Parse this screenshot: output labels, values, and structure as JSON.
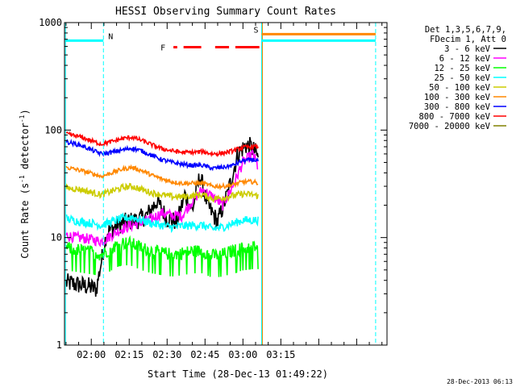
{
  "chart_data": {
    "type": "line",
    "title": "HESSI Observing Summary Count Rates",
    "xlabel": "Start Time (28-Dec-13 01:49:22)",
    "ylabel": "Count Rate (s-1 detector-1)",
    "ylabel_parts": {
      "main": "Count Rate (s",
      "exp1": "-1",
      "mid": " detector",
      "exp2": "-1",
      "close": ")"
    },
    "y_scale": "log",
    "ylim": [
      1,
      1000
    ],
    "y_ticks": [
      {
        "value": 1,
        "label": "1"
      },
      {
        "value": 10,
        "label": "10"
      },
      {
        "value": 100,
        "label": "100"
      },
      {
        "value": 1000,
        "label": "1000"
      }
    ],
    "xlim_minutes": [
      109.4,
      237.0
    ],
    "x_ticks": [
      {
        "minutes": 120,
        "label": "02:00"
      },
      {
        "minutes": 135,
        "label": "02:15"
      },
      {
        "minutes": 150,
        "label": "02:30"
      },
      {
        "minutes": 165,
        "label": "02:45"
      },
      {
        "minutes": 180,
        "label": "03:00"
      },
      {
        "minutes": 195,
        "label": "03:15"
      }
    ],
    "legend_header": [
      "Det 1,3,5,6,7,9,",
      "FDecim 1, Att 0"
    ],
    "legend_placement": "right",
    "grid": false,
    "series": [
      {
        "name": "3 - 6 keV",
        "color": "#000000",
        "x": [
          110,
          113,
          116,
          119,
          122,
          126,
          130,
          134,
          138,
          142,
          146,
          150,
          154,
          157,
          160,
          163,
          166,
          170,
          174,
          178,
          181,
          183,
          185,
          186
        ],
        "y": [
          3.8,
          3.7,
          3.6,
          3.5,
          3.3,
          11,
          13,
          14,
          14.5,
          16,
          22,
          15,
          14,
          25,
          18,
          38,
          20,
          14,
          26,
          60,
          72,
          70,
          62,
          55
        ]
      },
      {
        "name": "6 - 12 keV",
        "color": "#ff00ff",
        "x": [
          110,
          114,
          118,
          121,
          124,
          128,
          132,
          136,
          140,
          144,
          148,
          152,
          156,
          160,
          164,
          168,
          172,
          176,
          180,
          184,
          186
        ],
        "y": [
          10.5,
          10,
          9.8,
          9.5,
          9.2,
          10.5,
          12,
          13,
          14,
          15,
          17,
          16,
          16,
          22,
          28,
          24,
          20,
          30,
          50,
          60,
          45
        ]
      },
      {
        "name": "12 - 25 keV",
        "color": "#00ff00",
        "x": [
          110,
          116,
          121,
          124,
          128,
          132,
          136,
          140,
          144,
          148,
          152,
          156,
          160,
          164,
          168,
          172,
          176,
          180,
          184,
          186
        ],
        "y": [
          8,
          7.6,
          7.3,
          6.9,
          8,
          9,
          8.8,
          8,
          7.5,
          7.2,
          7,
          7.2,
          7.5,
          7.5,
          6.8,
          7,
          7.5,
          8,
          8.2,
          8.2
        ]
      },
      {
        "name": "25 - 50 keV",
        "color": "#00ffff",
        "x": [
          110,
          116,
          121,
          124,
          128,
          132,
          136,
          140,
          144,
          148,
          152,
          156,
          160,
          164,
          168,
          172,
          176,
          180,
          184,
          186
        ],
        "y": [
          15,
          14,
          13.5,
          13,
          14,
          15,
          15.5,
          14.5,
          13.5,
          13,
          12.5,
          12.8,
          13,
          13,
          12,
          12.5,
          13.5,
          14.5,
          14.5,
          14.5
        ]
      },
      {
        "name": "50 - 100 keV",
        "color": "#cccc00",
        "x": [
          110,
          116,
          121,
          124,
          128,
          132,
          136,
          140,
          144,
          148,
          152,
          156,
          160,
          164,
          168,
          172,
          176,
          180,
          184,
          186
        ],
        "y": [
          29,
          28,
          26,
          25,
          27,
          29,
          30,
          28,
          26,
          25,
          24,
          24,
          24.5,
          25,
          23,
          23.5,
          24.5,
          25.5,
          25,
          24.5
        ]
      },
      {
        "name": "100 - 300 keV",
        "color": "#ff8800",
        "x": [
          110,
          116,
          121,
          124,
          128,
          132,
          136,
          140,
          144,
          148,
          152,
          156,
          160,
          164,
          168,
          172,
          176,
          180,
          184,
          186
        ],
        "y": [
          45,
          42,
          39,
          37,
          40,
          43,
          45,
          42,
          38,
          35,
          33,
          32,
          32,
          32,
          30,
          30,
          31,
          33,
          33,
          32
        ]
      },
      {
        "name": "300 - 800 keV",
        "color": "#0000ff",
        "x": [
          110,
          116,
          121,
          124,
          128,
          132,
          136,
          140,
          144,
          148,
          152,
          156,
          160,
          164,
          168,
          172,
          176,
          180,
          184,
          186
        ],
        "y": [
          78,
          72,
          64,
          60,
          62,
          65,
          68,
          64,
          58,
          53,
          50,
          48,
          47,
          47,
          44,
          45,
          47,
          52,
          53,
          52
        ]
      },
      {
        "name": "800 - 7000 keV",
        "color": "#ff0000",
        "x": [
          110,
          116,
          121,
          124,
          128,
          132,
          136,
          140,
          144,
          148,
          152,
          156,
          160,
          164,
          168,
          172,
          176,
          180,
          184,
          186
        ],
        "y": [
          92,
          86,
          78,
          74,
          78,
          83,
          86,
          80,
          73,
          67,
          64,
          62,
          62,
          63,
          60,
          61,
          64,
          69,
          70,
          70
        ]
      },
      {
        "name": "7000 - 20000 keV",
        "color": "#808000",
        "x": [],
        "y": []
      }
    ],
    "annotations": [
      {
        "text": "N",
        "color": "#00ffff"
      },
      {
        "text": "S",
        "color": "#ff8800"
      },
      {
        "text": "F",
        "color": "#ff0000"
      }
    ],
    "night_interval_label": "N",
    "saa_interval_label": "S",
    "flare_interval_label": "F",
    "intervals": {
      "night_lines_minutes": [
        109.8,
        124.8
      ],
      "saa_lines_minutes": [
        187.4,
        232.5
      ],
      "flare_segments_minutes": [
        [
          152.5,
          154.0
        ],
        [
          156.5,
          163.5
        ],
        [
          169.0,
          174.5
        ],
        [
          177.0,
          186.5
        ]
      ],
      "saa_bar_level": 780,
      "night_bar_level": 680,
      "flare_level": 590
    },
    "timestamp": "28-Dec-2013 06:13"
  }
}
